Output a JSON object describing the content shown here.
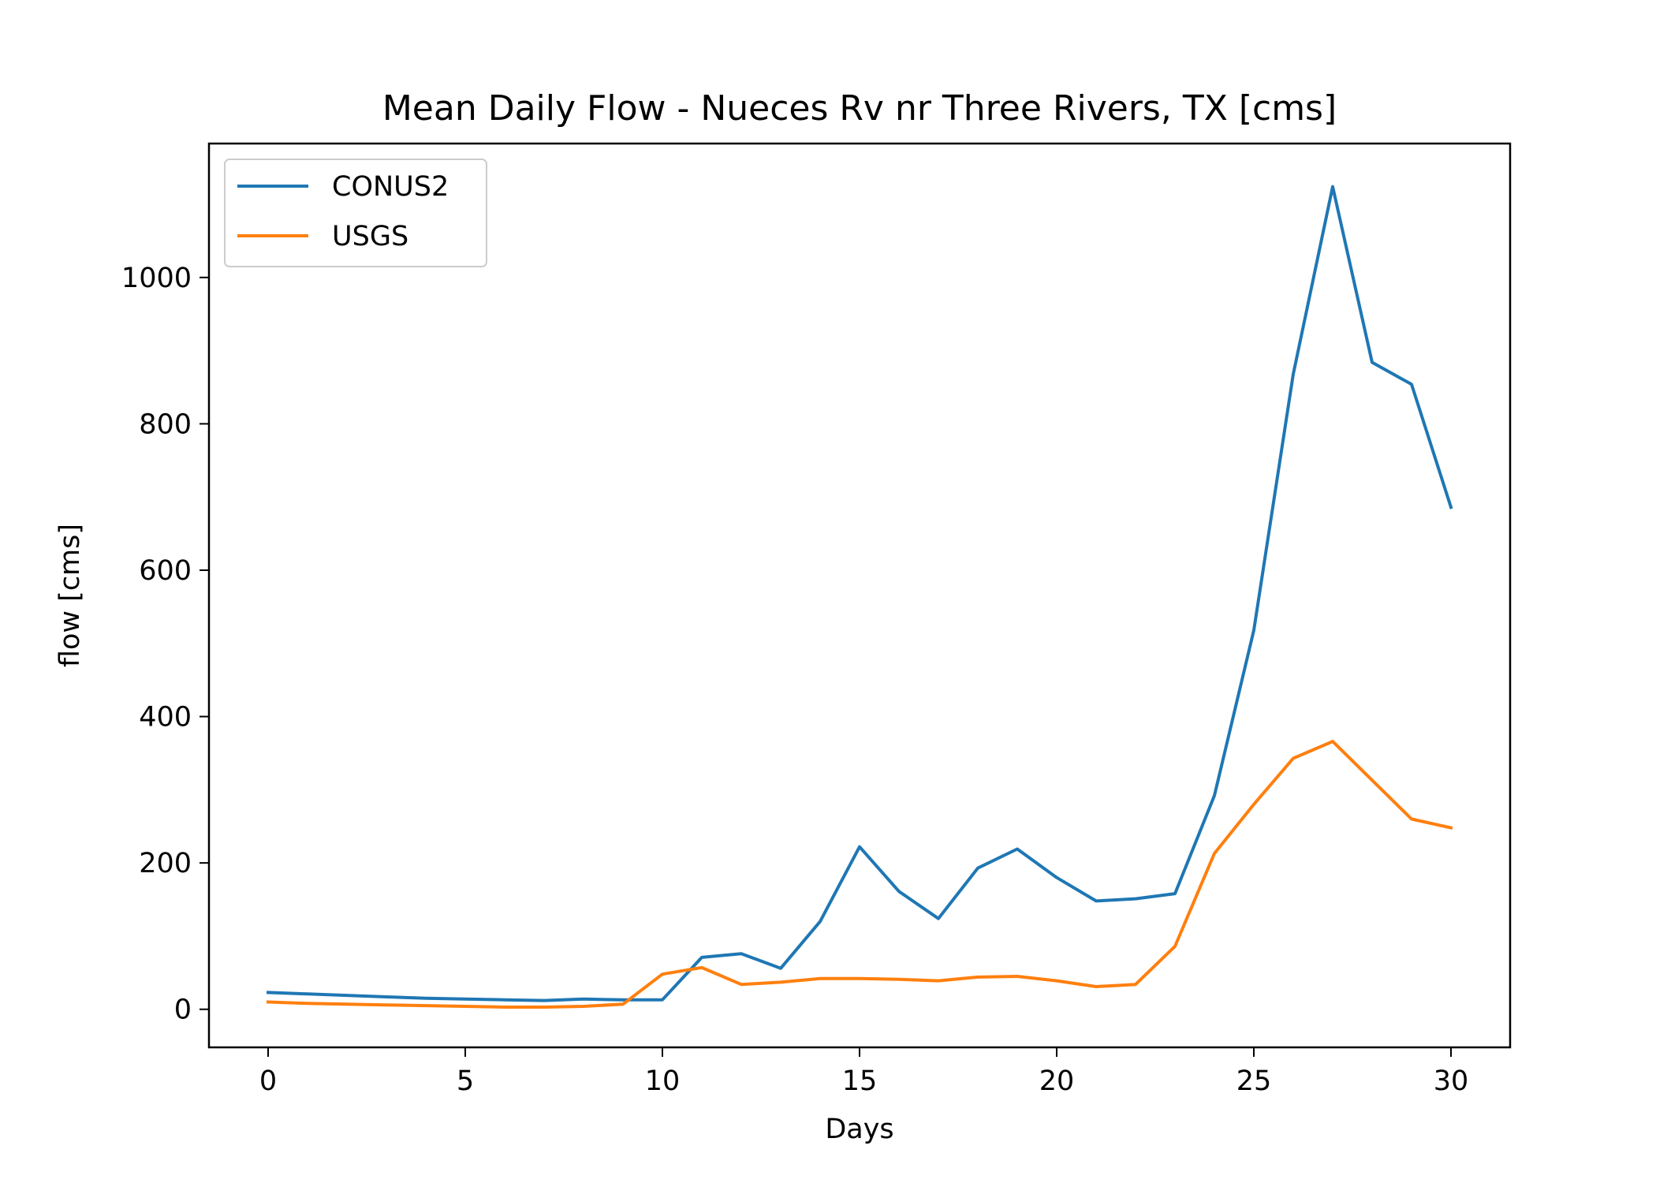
{
  "chart_data": {
    "type": "line",
    "title": "Mean Daily Flow - Nueces Rv nr Three Rivers, TX [cms]",
    "xlabel": "Days",
    "ylabel": "flow [cms]",
    "xlim": [
      -1.5,
      31.5
    ],
    "ylim": [
      -52,
      1183
    ],
    "xticks": [
      0,
      5,
      10,
      15,
      20,
      25,
      30
    ],
    "yticks": [
      0,
      200,
      400,
      600,
      800,
      1000
    ],
    "grid": false,
    "legend_position": "upper-left",
    "x": [
      0,
      1,
      2,
      3,
      4,
      5,
      6,
      7,
      8,
      9,
      10,
      11,
      12,
      13,
      14,
      15,
      16,
      17,
      18,
      19,
      20,
      21,
      22,
      23,
      24,
      25,
      26,
      27,
      28,
      29,
      30
    ],
    "series": [
      {
        "name": "CONUS2",
        "color": "#1f77b4",
        "values": [
          23,
          21,
          19,
          17,
          15,
          14,
          13,
          12,
          14,
          13,
          13,
          71,
          76,
          56,
          120,
          222,
          161,
          124,
          193,
          219,
          180,
          148,
          151,
          158,
          292,
          518,
          868,
          1124,
          884,
          854,
          686
        ]
      },
      {
        "name": "USGS",
        "color": "#ff7f0e",
        "values": [
          10,
          8,
          7,
          6,
          5,
          4,
          3,
          3,
          4,
          7,
          48,
          57,
          34,
          37,
          42,
          42,
          41,
          39,
          44,
          45,
          39,
          31,
          34,
          86,
          213,
          280,
          343,
          366,
          313,
          260,
          248
        ]
      }
    ]
  }
}
